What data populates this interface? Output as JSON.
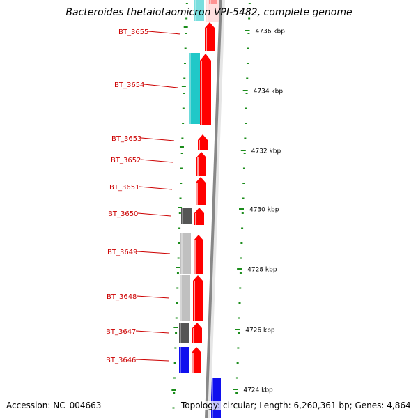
{
  "title": "Bacteroides thetaiotaomicron VPI-5482, complete genome",
  "footer": {
    "accession": "Accession: NC_004663",
    "summary": "Topology: circular; Length: 6,260,361 bp; Genes: 4,864"
  },
  "colors": {
    "plus_strand_gene": "#ff0000",
    "cyan_feature": "#20c8c8",
    "blue_feature": "#1010ee",
    "dark_gray_feature": "#555555",
    "light_gray_feature": "#c0c0c0",
    "label_color": "#cc0000",
    "tick_color": "#1a8c1a",
    "backbone_color": "#888888"
  },
  "ticks": [
    {
      "label": "4736 kbp"
    },
    {
      "label": "4734 kbp"
    },
    {
      "label": "4732 kbp"
    },
    {
      "label": "4730 kbp"
    },
    {
      "label": "4728 kbp"
    },
    {
      "label": "4726 kbp"
    },
    {
      "label": "4724 kbp"
    }
  ],
  "gene_labels": [
    {
      "name": "BT_3655"
    },
    {
      "name": "BT_3654"
    },
    {
      "name": "BT_3653"
    },
    {
      "name": "BT_3652"
    },
    {
      "name": "BT_3651"
    },
    {
      "name": "BT_3650"
    },
    {
      "name": "BT_3649"
    },
    {
      "name": "BT_3648"
    },
    {
      "name": "BT_3647"
    },
    {
      "name": "BT_3646"
    }
  ]
}
